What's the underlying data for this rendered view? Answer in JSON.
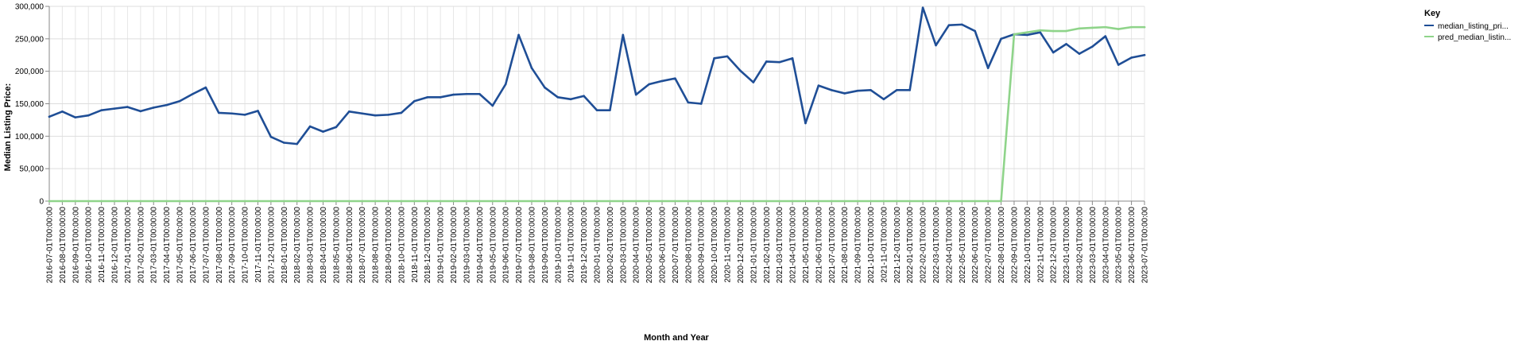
{
  "chart_data": {
    "type": "line",
    "xlabel": "Month and Year",
    "ylabel": "Median Listing Price:",
    "ylim": [
      0,
      300000
    ],
    "yticks": [
      "0",
      "50,000",
      "100,000",
      "150,000",
      "200,000",
      "250,000",
      "300,000"
    ],
    "grid": true,
    "legend_position": "right",
    "legend_title": "Key",
    "categories": [
      "2016-07-01T00:00:00",
      "2016-08-01T00:00:00",
      "2016-09-01T00:00:00",
      "2016-10-01T00:00:00",
      "2016-11-01T00:00:00",
      "2016-12-01T00:00:00",
      "2017-01-01T00:00:00",
      "2017-02-01T00:00:00",
      "2017-03-01T00:00:00",
      "2017-04-01T00:00:00",
      "2017-05-01T00:00:00",
      "2017-06-01T00:00:00",
      "2017-07-01T00:00:00",
      "2017-08-01T00:00:00",
      "2017-09-01T00:00:00",
      "2017-10-01T00:00:00",
      "2017-11-01T00:00:00",
      "2017-12-01T00:00:00",
      "2018-01-01T00:00:00",
      "2018-02-01T00:00:00",
      "2018-03-01T00:00:00",
      "2018-04-01T00:00:00",
      "2018-05-01T00:00:00",
      "2018-06-01T00:00:00",
      "2018-07-01T00:00:00",
      "2018-08-01T00:00:00",
      "2018-09-01T00:00:00",
      "2018-10-01T00:00:00",
      "2018-11-01T00:00:00",
      "2018-12-01T00:00:00",
      "2019-01-01T00:00:00",
      "2019-02-01T00:00:00",
      "2019-03-01T00:00:00",
      "2019-04-01T00:00:00",
      "2019-05-01T00:00:00",
      "2019-06-01T00:00:00",
      "2019-07-01T00:00:00",
      "2019-08-01T00:00:00",
      "2019-09-01T00:00:00",
      "2019-10-01T00:00:00",
      "2019-11-01T00:00:00",
      "2019-12-01T00:00:00",
      "2020-01-01T00:00:00",
      "2020-02-01T00:00:00",
      "2020-03-01T00:00:00",
      "2020-04-01T00:00:00",
      "2020-05-01T00:00:00",
      "2020-06-01T00:00:00",
      "2020-07-01T00:00:00",
      "2020-08-01T00:00:00",
      "2020-09-01T00:00:00",
      "2020-10-01T00:00:00",
      "2020-11-01T00:00:00",
      "2020-12-01T00:00:00",
      "2021-01-01T00:00:00",
      "2021-02-01T00:00:00",
      "2021-03-01T00:00:00",
      "2021-04-01T00:00:00",
      "2021-05-01T00:00:00",
      "2021-06-01T00:00:00",
      "2021-07-01T00:00:00",
      "2021-08-01T00:00:00",
      "2021-09-01T00:00:00",
      "2021-10-01T00:00:00",
      "2021-11-01T00:00:00",
      "2021-12-01T00:00:00",
      "2022-01-01T00:00:00",
      "2022-02-01T00:00:00",
      "2022-03-01T00:00:00",
      "2022-04-01T00:00:00",
      "2022-05-01T00:00:00",
      "2022-06-01T00:00:00",
      "2022-07-01T00:00:00",
      "2022-08-01T00:00:00",
      "2022-09-01T00:00:00",
      "2022-10-01T00:00:00",
      "2022-11-01T00:00:00",
      "2022-12-01T00:00:00",
      "2023-01-01T00:00:00",
      "2023-02-01T00:00:00",
      "2023-03-01T00:00:00",
      "2023-04-01T00:00:00",
      "2023-05-01T00:00:00",
      "2023-06-01T00:00:00",
      "2023-07-01T00:00:00"
    ],
    "series": [
      {
        "name": "median_listing_pri...",
        "color": "#1f4e96",
        "values": [
          130000,
          138000,
          129000,
          132000,
          140000,
          142500,
          145000,
          138500,
          144000,
          148000,
          154000,
          165000,
          175000,
          136000,
          135000,
          133000,
          139000,
          99000,
          90000,
          88000,
          115000,
          107000,
          114000,
          138000,
          135000,
          132000,
          133000,
          136000,
          154000,
          160000,
          160000,
          164000,
          165000,
          165000,
          147000,
          180000,
          256000,
          205000,
          175000,
          160000,
          157000,
          162000,
          140000,
          140000,
          256000,
          164000,
          180000,
          185000,
          189000,
          152000,
          150000,
          220000,
          223000,
          201000,
          183000,
          215000,
          214000,
          220000,
          120000,
          178000,
          171000,
          166000,
          170000,
          171000,
          157000,
          171000,
          171000,
          298000,
          240000,
          271000,
          272000,
          262000,
          205000,
          250000,
          257000,
          256000,
          260000,
          229000,
          242000,
          227000,
          238000,
          254000,
          210000,
          221000,
          225000
        ]
      },
      {
        "name": "pred_median_listin...",
        "color": "#8fd48a",
        "values": [
          0,
          0,
          0,
          0,
          0,
          0,
          0,
          0,
          0,
          0,
          0,
          0,
          0,
          0,
          0,
          0,
          0,
          0,
          0,
          0,
          0,
          0,
          0,
          0,
          0,
          0,
          0,
          0,
          0,
          0,
          0,
          0,
          0,
          0,
          0,
          0,
          0,
          0,
          0,
          0,
          0,
          0,
          0,
          0,
          0,
          0,
          0,
          0,
          0,
          0,
          0,
          0,
          0,
          0,
          0,
          0,
          0,
          0,
          0,
          0,
          0,
          0,
          0,
          0,
          0,
          0,
          0,
          0,
          0,
          0,
          0,
          0,
          0,
          0,
          257000,
          260000,
          263000,
          262000,
          262000,
          266000,
          267000,
          268000,
          265000,
          268000,
          268000
        ]
      }
    ]
  }
}
